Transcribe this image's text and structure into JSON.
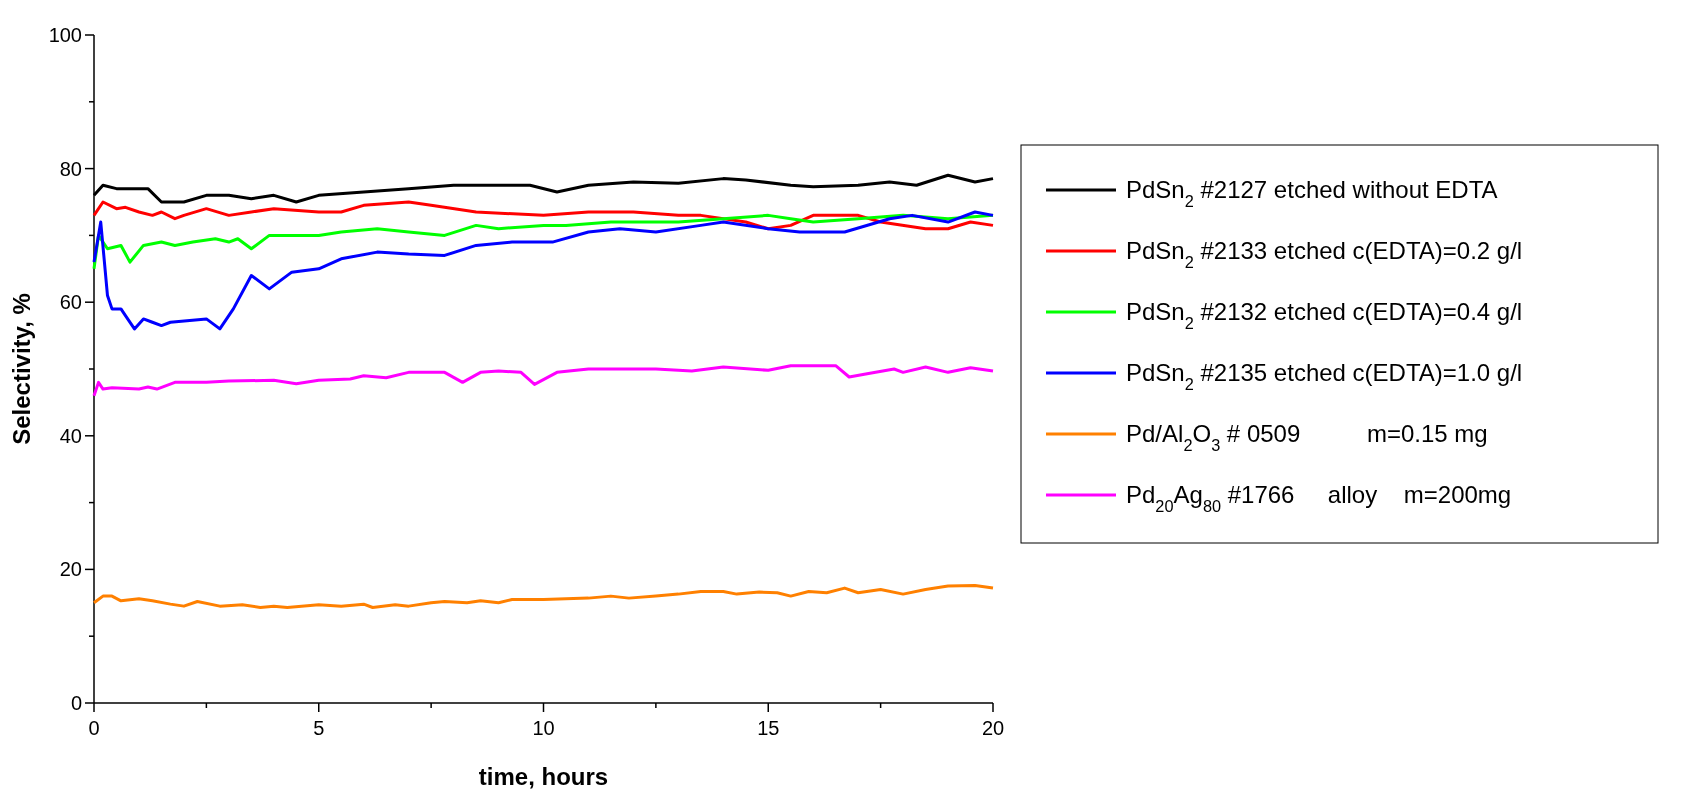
{
  "chart_data": {
    "type": "line",
    "xlabel": "time, hours",
    "ylabel": "Selectivity, %",
    "xlim": [
      0,
      20
    ],
    "ylim": [
      0,
      100
    ],
    "xticks": [
      0,
      {
        "value": 2.5,
        "label": null
      },
      5,
      {
        "value": 7.5,
        "label": null
      },
      10,
      {
        "value": 12.5,
        "label": null
      },
      15,
      {
        "value": 17.5,
        "label": null
      },
      20
    ],
    "yticks": [
      0,
      {
        "value": 10,
        "label": null
      },
      20,
      {
        "value": 30,
        "label": null
      },
      40,
      {
        "value": 50,
        "label": null
      },
      60,
      {
        "value": 70,
        "label": null
      },
      80,
      {
        "value": 90,
        "label": null
      },
      100
    ],
    "grid": false,
    "legend": "right",
    "line_style": "solid",
    "marker": "none",
    "series": [
      {
        "name": "PdSn$_{2}$ #2127 etched without EDTA",
        "color": "#000000",
        "x": [
          0,
          0.2,
          0.5,
          0.8,
          1.2,
          1.5,
          2,
          2.5,
          3,
          3.5,
          4,
          4.5,
          5,
          6,
          7,
          8,
          9,
          9.7,
          10.3,
          11,
          12,
          13,
          14,
          14.5,
          15.5,
          16,
          17,
          17.7,
          18.3,
          19,
          19.6,
          20
        ],
        "values": [
          76,
          77.5,
          77,
          77,
          77,
          75,
          75,
          76,
          76,
          75.5,
          76,
          75,
          76,
          76.5,
          77,
          77.5,
          77.5,
          77.5,
          76.5,
          77.5,
          78,
          77.8,
          78.5,
          78.3,
          77.5,
          77.3,
          77.5,
          78,
          77.5,
          79,
          78,
          78.5
        ]
      },
      {
        "name": "PdSn$_{2}$ #2133 etched c(EDTA)=0.2 g/l",
        "color": "#ff0000",
        "x": [
          0,
          0.2,
          0.5,
          0.7,
          1,
          1.3,
          1.5,
          1.8,
          2,
          2.5,
          3,
          3.5,
          4,
          5,
          5.5,
          6,
          7,
          7.5,
          8.5,
          10,
          11,
          12,
          13,
          13.5,
          14.5,
          15,
          15.5,
          16,
          17,
          17.5,
          18.5,
          19,
          19.5,
          20
        ],
        "values": [
          73,
          75,
          74,
          74.2,
          73.5,
          73,
          73.5,
          72.5,
          73,
          74,
          73,
          73.5,
          74,
          73.5,
          73.5,
          74.5,
          75,
          74.5,
          73.5,
          73,
          73.5,
          73.5,
          73,
          73,
          72,
          71,
          71.5,
          73,
          73,
          72,
          71,
          71,
          72,
          71.5
        ]
      },
      {
        "name": "PdSn$_{2}$ #2132 etched c(EDTA)=0.4 g/l",
        "color": "#00ff00",
        "x": [
          0,
          0.1,
          0.3,
          0.6,
          0.8,
          1.1,
          1.5,
          1.8,
          2.2,
          2.7,
          3,
          3.2,
          3.5,
          3.9,
          5,
          5.5,
          6.3,
          7,
          7.8,
          8.5,
          9,
          10,
          10.5,
          11.5,
          13,
          14,
          15,
          15.5,
          16,
          17,
          18,
          19,
          20
        ],
        "values": [
          65,
          70,
          68,
          68.5,
          66,
          68.5,
          69,
          68.5,
          69,
          69.5,
          69,
          69.5,
          68,
          70,
          70,
          70.5,
          71,
          70.5,
          70,
          71.5,
          71,
          71.5,
          71.5,
          72,
          72,
          72.5,
          73,
          72.5,
          72,
          72.5,
          73,
          72.5,
          73
        ]
      },
      {
        "name": "PdSn$_{2}$ #2135 etched c(EDTA)=1.0 g/l",
        "color": "#0000ff",
        "x": [
          0,
          0.15,
          0.3,
          0.4,
          0.6,
          0.7,
          0.9,
          1.1,
          1.3,
          1.5,
          1.7,
          2.5,
          2.8,
          3.1,
          3.5,
          3.9,
          4.4,
          5,
          5.5,
          6.3,
          7,
          7.8,
          8.5,
          9.3,
          10.2,
          11,
          11.7,
          12.5,
          13.5,
          14,
          15,
          15.7,
          16.7,
          17.7,
          18.2,
          19,
          19.6,
          20
        ],
        "values": [
          66,
          72,
          61,
          59,
          59,
          58,
          56,
          57.5,
          57,
          56.5,
          57,
          57.5,
          56,
          59,
          64,
          62,
          64.5,
          65,
          66.5,
          67.5,
          67.2,
          67,
          68.5,
          69,
          69,
          70.5,
          71,
          70.5,
          71.5,
          72,
          71,
          70.5,
          70.5,
          72.5,
          73,
          72,
          73.5,
          73
        ]
      },
      {
        "name": "Pd/Al$_{2}$O$_{3}$ # 0509          m=0.15 mg",
        "color": "#ff8000",
        "x": [
          0,
          0.2,
          0.4,
          0.6,
          1,
          1.3,
          1.7,
          2,
          2.3,
          2.8,
          3.3,
          3.7,
          4,
          4.3,
          5,
          5.5,
          6,
          6.2,
          6.7,
          7,
          7.5,
          7.8,
          8.3,
          8.6,
          9,
          9.3,
          10,
          11,
          11.5,
          11.9,
          12.5,
          13,
          13.5,
          14,
          14.3,
          14.8,
          15.2,
          15.5,
          15.9,
          16.3,
          16.7,
          17,
          17.5,
          18,
          18.5,
          19,
          19.6,
          20
        ],
        "values": [
          15,
          16,
          16,
          15.3,
          15.6,
          15.3,
          14.8,
          14.5,
          15.2,
          14.5,
          14.7,
          14.3,
          14.5,
          14.3,
          14.7,
          14.5,
          14.8,
          14.3,
          14.7,
          14.5,
          15,
          15.2,
          15,
          15.3,
          15,
          15.5,
          15.5,
          15.7,
          16,
          15.7,
          16,
          16.3,
          16.7,
          16.7,
          16.3,
          16.6,
          16.5,
          16,
          16.7,
          16.5,
          17.2,
          16.5,
          17,
          16.3,
          17,
          17.5,
          17.6,
          17.2
        ]
      },
      {
        "name": "Pd$_{20}$Ag$_{80}$ #1766     alloy    m=200mg",
        "color": "#ff00ff",
        "x": [
          0,
          0.1,
          0.2,
          0.4,
          1,
          1.2,
          1.4,
          1.8,
          2.5,
          3,
          4,
          4.5,
          5,
          5.7,
          6,
          6.5,
          7,
          7.8,
          8.2,
          8.6,
          9,
          9.5,
          9.8,
          10.3,
          11,
          12.5,
          13.3,
          14,
          15,
          15.5,
          16.5,
          16.8,
          17.2,
          17.8,
          18,
          18.5,
          19,
          19.5,
          20
        ],
        "values": [
          46,
          48,
          47,
          47.2,
          47,
          47.3,
          47,
          48,
          48,
          48.2,
          48.3,
          47.8,
          48.3,
          48.5,
          49,
          48.7,
          49.5,
          49.5,
          48,
          49.5,
          49.7,
          49.5,
          47.7,
          49.5,
          50,
          50,
          49.7,
          50.3,
          49.8,
          50.5,
          50.5,
          48.8,
          49.3,
          50,
          49.5,
          50.3,
          49.5,
          50.2,
          49.7
        ]
      }
    ]
  }
}
